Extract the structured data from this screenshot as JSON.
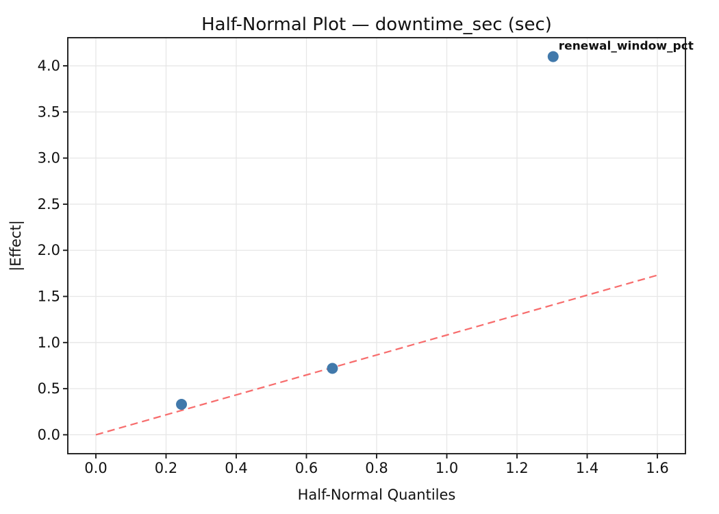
{
  "chart_data": {
    "type": "scatter",
    "title": "Half-Normal Plot — downtime_sec (sec)",
    "xlabel": "Half-Normal Quantiles",
    "ylabel": "|Effect|",
    "xlim": [
      -0.08,
      1.68
    ],
    "ylim": [
      -0.205,
      4.305
    ],
    "xticks": [
      0.0,
      0.2,
      0.4,
      0.6,
      0.8,
      1.0,
      1.2,
      1.4,
      1.6
    ],
    "yticks": [
      0.0,
      0.5,
      1.0,
      1.5,
      2.0,
      2.5,
      3.0,
      3.5,
      4.0
    ],
    "grid": true,
    "legend": "none",
    "points": [
      {
        "x": 0.244,
        "y": 0.33,
        "label": ""
      },
      {
        "x": 0.674,
        "y": 0.72,
        "label": ""
      },
      {
        "x": 1.303,
        "y": 4.1,
        "label": "renewal_window_pct"
      }
    ],
    "reference_line": {
      "x": [
        0.0,
        1.6
      ],
      "y": [
        0.0,
        1.73
      ],
      "style": "dashed"
    },
    "colors": {
      "point": "#4179ab",
      "line": "#f76d6d",
      "annotation": "#e60000",
      "grid": "#e6e6e6",
      "spine": "#1c1c1c",
      "text": "#111111",
      "background": "#ffffff"
    }
  }
}
